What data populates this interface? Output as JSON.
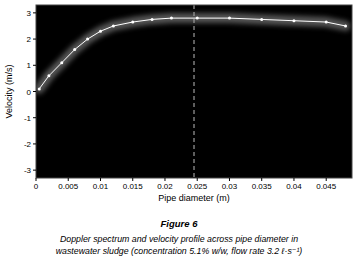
{
  "chart_data": {
    "type": "line",
    "x_label": "Pipe diameter (m)",
    "y_label": "Velocity (m/s)",
    "caption_label": "Figure 6",
    "caption_lines": [
      "Doppler spectrum and velocity profile across pipe diameter in",
      "wastewater sludge (concentration 5.1% w/w, flow rate 3.2 ℓ·s⁻¹)"
    ],
    "xlim": [
      0,
      0.049
    ],
    "ylim": [
      -3.3,
      3.3
    ],
    "xticks": [
      0,
      0.005,
      0.01,
      0.015,
      0.02,
      0.025,
      0.03,
      0.035,
      0.04,
      0.045
    ],
    "yticks": [
      -3,
      -2,
      -1,
      0,
      1,
      2,
      3
    ],
    "grid": false,
    "reference_line_x": 0.0245,
    "series": [
      {
        "color": "#ffffff",
        "marker": "circle",
        "x": [
          0.0005,
          0.002,
          0.004,
          0.006,
          0.008,
          0.01,
          0.012,
          0.015,
          0.018,
          0.021,
          0.025,
          0.03,
          0.035,
          0.04,
          0.045,
          0.048
        ],
        "values": [
          0.1,
          0.6,
          1.1,
          1.6,
          2.0,
          2.3,
          2.5,
          2.65,
          2.75,
          2.8,
          2.8,
          2.8,
          2.75,
          2.7,
          2.65,
          2.5
        ]
      }
    ]
  }
}
